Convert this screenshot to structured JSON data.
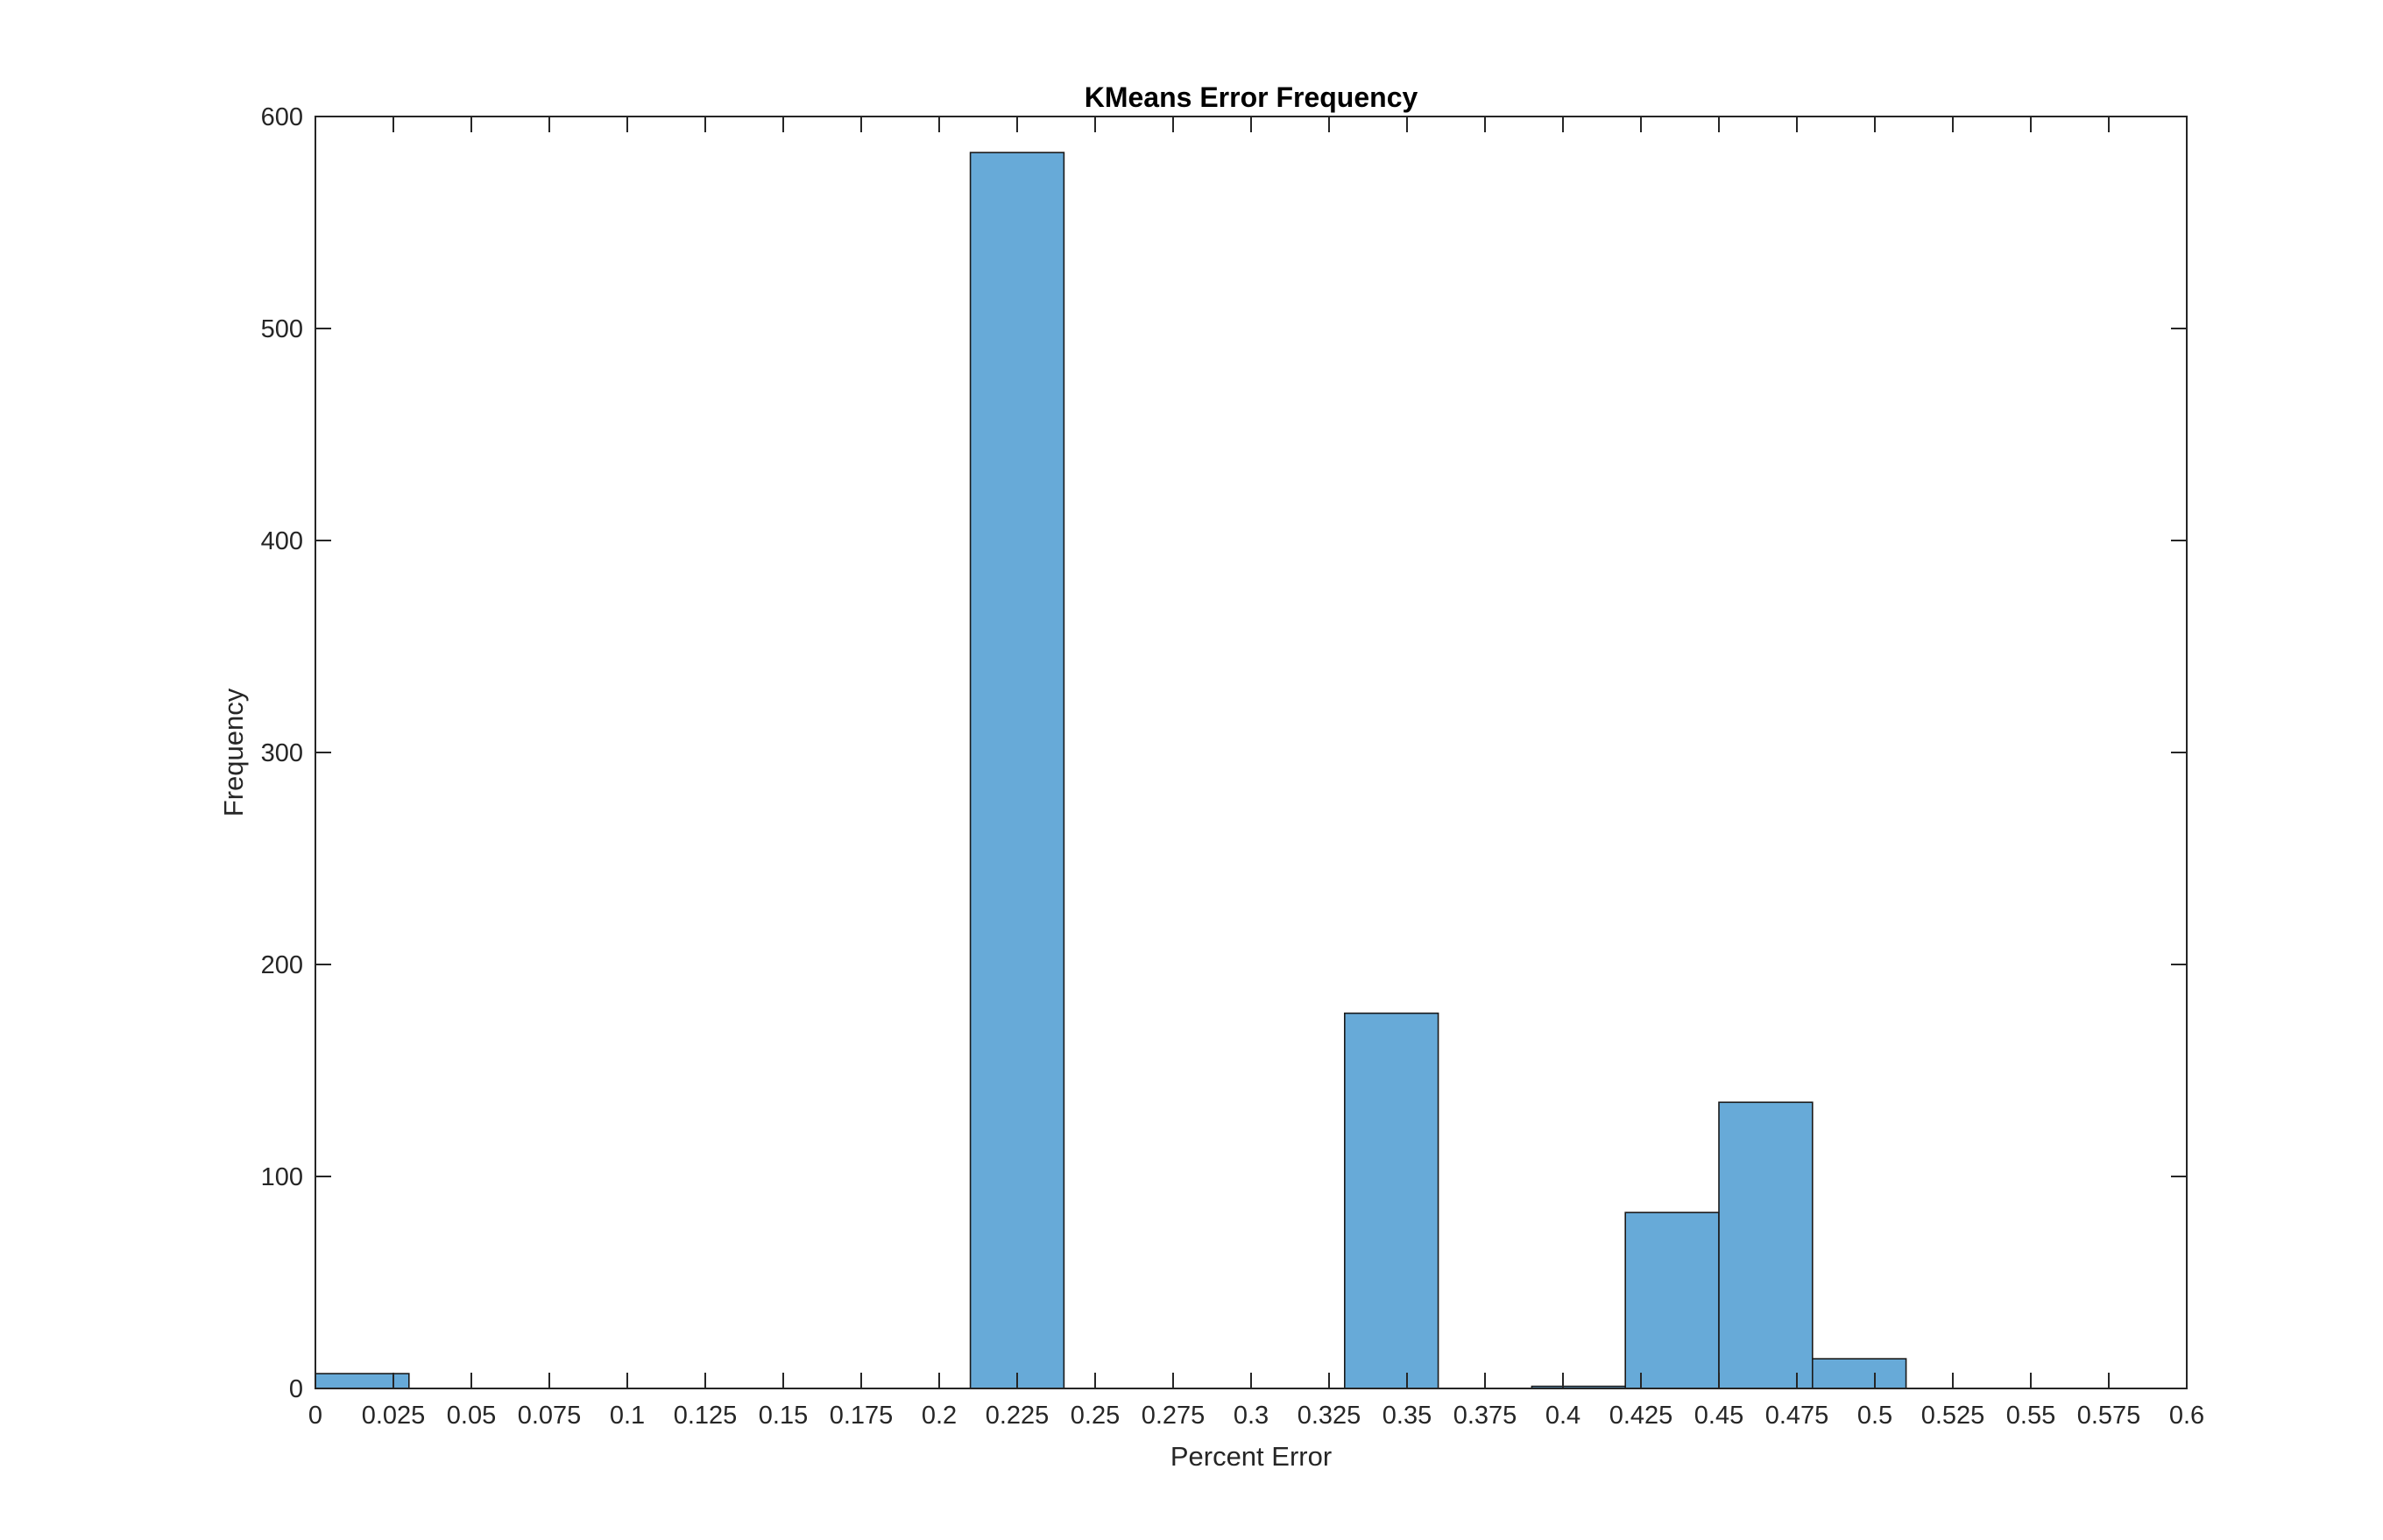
{
  "chart_data": {
    "type": "bar",
    "title": "KMeans Error Frequency",
    "xlabel": "Percent Error",
    "ylabel": "Frequency",
    "xlim": [
      0,
      0.6
    ],
    "ylim": [
      0,
      600
    ],
    "bin_width": 0.03,
    "bins": [
      {
        "start": 0.0,
        "end": 0.03,
        "value": 7
      },
      {
        "start": 0.21,
        "end": 0.24,
        "value": 583
      },
      {
        "start": 0.33,
        "end": 0.36,
        "value": 177
      },
      {
        "start": 0.39,
        "end": 0.42,
        "value": 1
      },
      {
        "start": 0.42,
        "end": 0.45,
        "value": 83
      },
      {
        "start": 0.45,
        "end": 0.48,
        "value": 135
      },
      {
        "start": 0.48,
        "end": 0.51,
        "value": 14
      }
    ],
    "x_ticks": [
      0,
      0.025,
      0.05,
      0.075,
      0.1,
      0.125,
      0.15,
      0.175,
      0.2,
      0.225,
      0.25,
      0.275,
      0.3,
      0.325,
      0.35,
      0.375,
      0.4,
      0.425,
      0.45,
      0.475,
      0.5,
      0.525,
      0.55,
      0.575,
      0.6
    ],
    "x_tick_labels": [
      "0",
      "0.025",
      "0.05",
      "0.075",
      "0.1",
      "0.125",
      "0.15",
      "0.175",
      "0.2",
      "0.225",
      "0.25",
      "0.275",
      "0.3",
      "0.325",
      "0.35",
      "0.375",
      "0.4",
      "0.425",
      "0.45",
      "0.475",
      "0.5",
      "0.525",
      "0.55",
      "0.575",
      "0.6"
    ],
    "y_ticks": [
      0,
      100,
      200,
      300,
      400,
      500,
      600
    ],
    "y_tick_labels": [
      "0",
      "100",
      "200",
      "300",
      "400",
      "500",
      "600"
    ],
    "grid": false,
    "legend": "none",
    "colors": {
      "bar_fill": "#67aad8",
      "bar_edge": "#1a1a1a",
      "axis": "#262626"
    }
  }
}
